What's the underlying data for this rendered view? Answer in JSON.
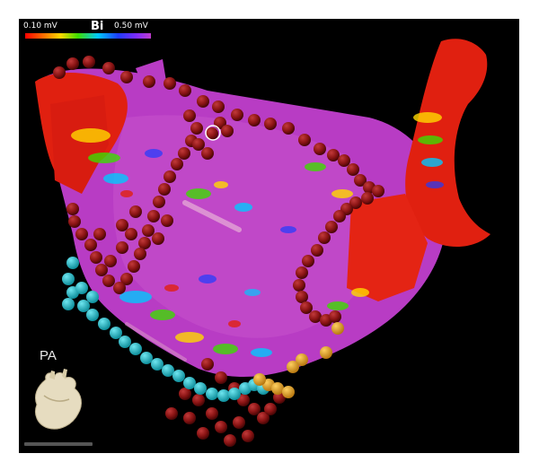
{
  "scale": {
    "min_label": "0.10 mV",
    "name": "Bi",
    "max_label": "0.50 mV",
    "colors": [
      "#ff0000",
      "#ff6a00",
      "#ffd800",
      "#3cdc00",
      "#00c8ff",
      "#1e3cff",
      "#7a2cff",
      "#c03ccc"
    ]
  },
  "view_label": "PA",
  "colors": {
    "background": "#000000",
    "tissue_healthy": "#c040c8",
    "scar": "#e02010",
    "lesion_marker": "#8a1010",
    "cyan_marker": "#19b8c8",
    "orange_marker": "#e6a21e"
  }
}
